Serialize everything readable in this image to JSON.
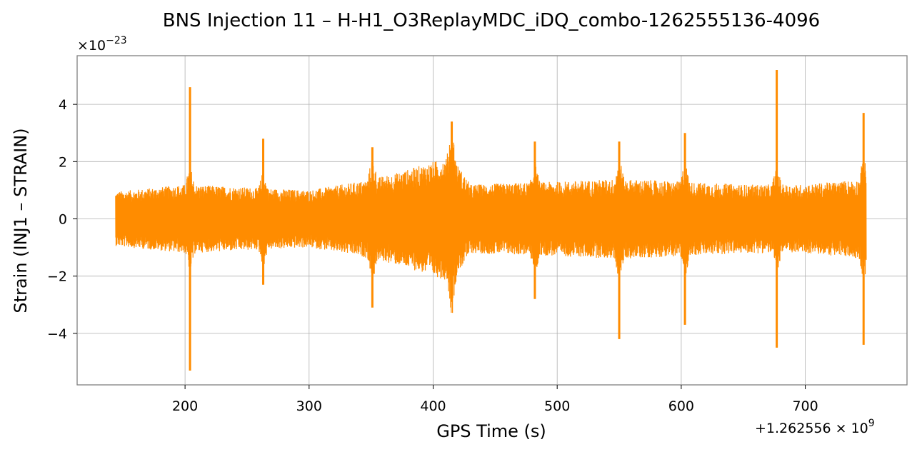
{
  "chart_data": {
    "type": "line",
    "title": "BNS Injection 11 – H-H1_O3ReplayMDC_iDQ_combo-1262555136-4096",
    "xlabel": "GPS Time (s)",
    "ylabel": "Strain (INJ1 – STRAIN)",
    "x_offset_text": "+1.262556 × 10",
    "x_offset_exp": "9",
    "y_scale_text": "×10",
    "y_scale_exp": "−23",
    "xlim": [
      113,
      782
    ],
    "ylim": [
      -5.8,
      5.7
    ],
    "xticks": [
      200,
      300,
      400,
      500,
      600,
      700
    ],
    "xtick_labels": [
      "200",
      "300",
      "400",
      "500",
      "600",
      "700"
    ],
    "yticks": [
      -4,
      -2,
      0,
      2,
      4
    ],
    "ytick_labels": [
      "−4",
      "−2",
      "0",
      "2",
      "4"
    ],
    "grid": true,
    "series": [
      {
        "color": "#ff8c00",
        "x_range": [
          144,
          749
        ],
        "baseline_amplitude": 1.0,
        "envelope": [
          {
            "x": 144,
            "amp": 0.95
          },
          {
            "x": 200,
            "amp": 1.2
          },
          {
            "x": 250,
            "amp": 1.1
          },
          {
            "x": 300,
            "amp": 1.0
          },
          {
            "x": 340,
            "amp": 1.3
          },
          {
            "x": 370,
            "amp": 1.6
          },
          {
            "x": 400,
            "amp": 2.0
          },
          {
            "x": 415,
            "amp": 2.2
          },
          {
            "x": 430,
            "amp": 1.2
          },
          {
            "x": 500,
            "amp": 1.3
          },
          {
            "x": 550,
            "amp": 1.4
          },
          {
            "x": 600,
            "amp": 1.3
          },
          {
            "x": 650,
            "amp": 1.2
          },
          {
            "x": 700,
            "amp": 1.2
          },
          {
            "x": 749,
            "amp": 1.4
          }
        ],
        "spikes": [
          {
            "x": 204,
            "max": 4.6,
            "min": -5.3
          },
          {
            "x": 263,
            "max": 2.8,
            "min": -2.3
          },
          {
            "x": 351,
            "max": 2.5,
            "min": -3.1
          },
          {
            "x": 415,
            "max": 3.4,
            "min": -2.9
          },
          {
            "x": 482,
            "max": 2.7,
            "min": -2.8
          },
          {
            "x": 550,
            "max": 2.7,
            "min": -4.2
          },
          {
            "x": 603,
            "max": 3.0,
            "min": -3.7
          },
          {
            "x": 677,
            "max": 5.2,
            "min": -4.5
          },
          {
            "x": 747,
            "max": 3.7,
            "min": -4.4
          }
        ]
      }
    ]
  }
}
